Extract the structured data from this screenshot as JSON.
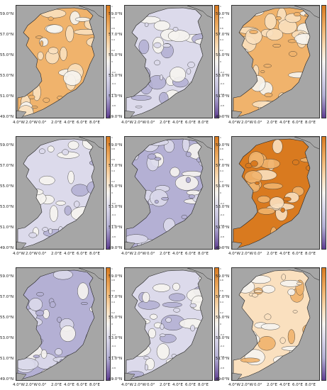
{
  "latitude_labels": [
    "59.0°N",
    "57.0°N",
    "55.0°N",
    "53.0°N",
    "51.0°N",
    "49.0°N"
  ],
  "longitude_labels": [
    "4.0°W",
    "2.0°W",
    "0.0°",
    "2.0°E",
    "4.0°E",
    "6.0°E",
    "8.0°E"
  ],
  "colorbar_ticks": [
    "1",
    "0.8",
    "0.6",
    "0.4",
    "0.2",
    "0",
    "-0.2",
    "-0.4",
    "-0.6",
    "-0.8",
    "-1"
  ],
  "colors": {
    "land": "#a6a6a6",
    "strong_positive": "#d97a1f",
    "positive": "#f0b36c",
    "weak_positive": "#fae0bf",
    "neutral": "#f6f4f0",
    "weak_negative": "#dcdaeb",
    "negative": "#b4b0d4",
    "strong_negative": "#5e3d92"
  },
  "panels": [
    {
      "id": "r1c1",
      "anomaly": "positive"
    },
    {
      "id": "r1c2",
      "anomaly": "weak_negative"
    },
    {
      "id": "r1c3",
      "anomaly": "positive"
    },
    {
      "id": "r2c1",
      "anomaly": "weak_negative"
    },
    {
      "id": "r2c2",
      "anomaly": "negative"
    },
    {
      "id": "r2c3",
      "anomaly": "strong_positive"
    },
    {
      "id": "r3c1",
      "anomaly": "negative"
    },
    {
      "id": "r3c2",
      "anomaly": "weak_negative"
    },
    {
      "id": "r3c3",
      "anomaly": "weak_positive"
    }
  ]
}
